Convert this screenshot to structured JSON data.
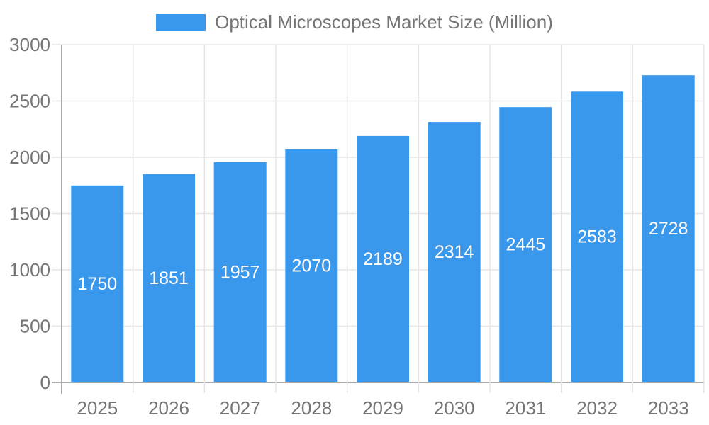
{
  "chart_data": {
    "type": "bar",
    "title": "Optical Microscopes Market Size (Million)",
    "legend_entries": [
      "Optical Microscopes Market Size (Million)"
    ],
    "legend_position": "top-center",
    "categories": [
      "2025",
      "2026",
      "2027",
      "2028",
      "2029",
      "2030",
      "2031",
      "2032",
      "2033"
    ],
    "series": [
      {
        "name": "Optical Microscopes Market Size (Million)",
        "values": [
          1750,
          1851,
          1957,
          2070,
          2189,
          2314,
          2445,
          2583,
          2728
        ]
      }
    ],
    "xlabel": "",
    "ylabel": "",
    "ylim": [
      0,
      3000
    ],
    "yticks": [
      0,
      500,
      1000,
      1500,
      2000,
      2500,
      3000
    ],
    "grid": "both",
    "bar_value_labels": "inside, vertically centered, white"
  },
  "colors": {
    "bar": "#3A98EC",
    "grid": "#E5E5E5",
    "axis": "#ABABAB",
    "tick_text": "#757575",
    "bar_label_text": "#FFFFFF",
    "background": "#FFFFFF"
  }
}
